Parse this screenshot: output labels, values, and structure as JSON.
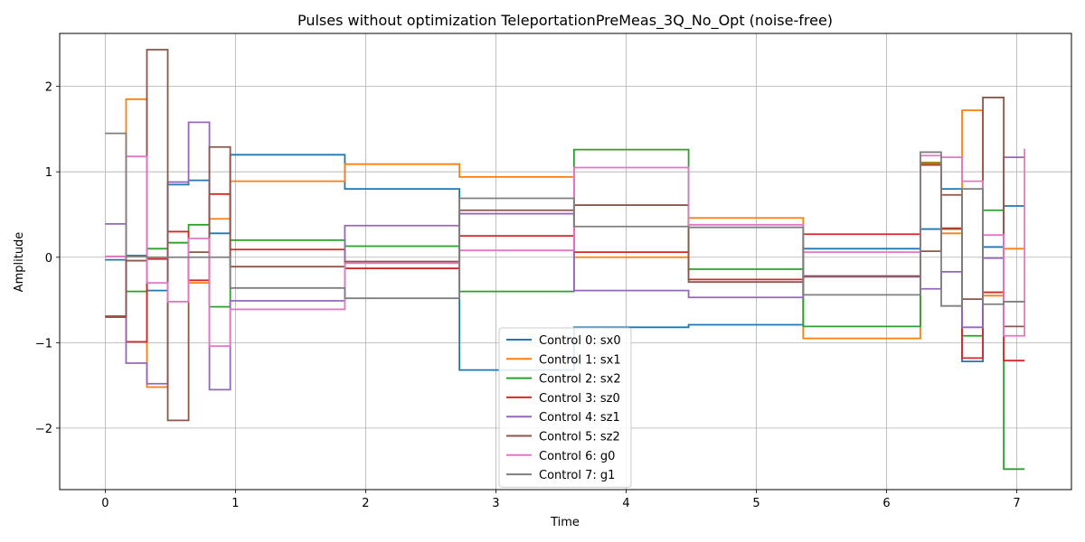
{
  "chart_data": {
    "type": "line",
    "step": "post",
    "title": "Pulses without optimization TeleportationPreMeas_3Q_No_Opt (noise-free)",
    "xlabel": "Time",
    "ylabel": "Amplitude",
    "xlim": [
      -0.35,
      7.42
    ],
    "ylim": [
      -2.72,
      2.62
    ],
    "x_ticks": [
      0,
      1,
      2,
      3,
      4,
      5,
      6,
      7
    ],
    "y_ticks": [
      -2,
      -1,
      0,
      1,
      2
    ],
    "x_tick_labels": [
      "0",
      "1",
      "2",
      "3",
      "4",
      "5",
      "6",
      "7"
    ],
    "y_tick_labels": [
      "−2",
      "−1",
      "0",
      "1",
      "2"
    ],
    "grid": true,
    "legend_position": "lower-center",
    "x": [
      0,
      0.16,
      0.32,
      0.48,
      0.64,
      0.8,
      0.96,
      1.84,
      2.72,
      3.6,
      4.48,
      5.36,
      6.26,
      6.42,
      6.58,
      6.74,
      6.9,
      7.06
    ],
    "series": [
      {
        "name": "Control 0: sx0",
        "color": "#1f77b4",
        "values": [
          -0.03,
          0.02,
          -0.39,
          0.85,
          0.9,
          0.28,
          1.2,
          0.8,
          -1.32,
          -0.82,
          -0.79,
          0.1,
          0.33,
          0.8,
          -1.22,
          0.12,
          0.6,
          0.6
        ]
      },
      {
        "name": "Control 1: sx1",
        "color": "#ff7f0e",
        "values": [
          -0.7,
          1.85,
          -1.52,
          0.3,
          -0.3,
          0.45,
          0.89,
          1.09,
          0.94,
          0.0,
          0.46,
          -0.95,
          1.11,
          0.28,
          1.72,
          -0.45,
          0.1,
          0.1
        ]
      },
      {
        "name": "Control 2: sx2",
        "color": "#2ca02c",
        "values": [
          -0.7,
          -0.4,
          0.1,
          0.17,
          0.38,
          -0.58,
          0.2,
          0.13,
          -0.4,
          1.26,
          -0.14,
          -0.81,
          1.1,
          0.33,
          -0.92,
          0.55,
          -2.48,
          -2.48
        ]
      },
      {
        "name": "Control 3: sz0",
        "color": "#d62728",
        "values": [
          -0.69,
          -0.99,
          -0.02,
          0.3,
          -0.27,
          0.74,
          0.09,
          -0.13,
          0.25,
          0.06,
          -0.26,
          0.27,
          1.08,
          0.34,
          -1.18,
          -0.41,
          -1.21,
          -1.21
        ]
      },
      {
        "name": "Control 4: sz1",
        "color": "#9467bd",
        "values": [
          0.39,
          -1.24,
          -1.48,
          0.88,
          1.58,
          -1.55,
          -0.51,
          0.37,
          0.51,
          -0.39,
          -0.47,
          -0.23,
          -0.37,
          -0.17,
          -0.82,
          -0.01,
          1.17,
          1.17
        ]
      },
      {
        "name": "Control 5: sz2",
        "color": "#8c564b",
        "values": [
          -0.7,
          -0.04,
          2.43,
          -1.91,
          0.06,
          1.29,
          -0.11,
          -0.05,
          0.55,
          0.61,
          -0.29,
          -0.22,
          0.07,
          0.73,
          -0.49,
          1.87,
          -0.81,
          -0.81
        ]
      },
      {
        "name": "Control 6: g0",
        "color": "#e377c2",
        "values": [
          0.01,
          1.18,
          -0.3,
          -0.52,
          0.22,
          -1.04,
          -0.61,
          -0.07,
          0.08,
          1.05,
          0.38,
          0.06,
          1.19,
          1.17,
          0.89,
          0.26,
          -0.92,
          1.27
        ]
      },
      {
        "name": "Control 7: g1",
        "color": "#7f7f7f",
        "values": [
          1.45,
          0.01,
          0.0,
          0.0,
          0.0,
          0.0,
          -0.36,
          -0.48,
          0.69,
          0.36,
          0.35,
          -0.44,
          1.23,
          -0.57,
          0.8,
          -0.55,
          -0.52,
          -0.52
        ]
      }
    ]
  }
}
